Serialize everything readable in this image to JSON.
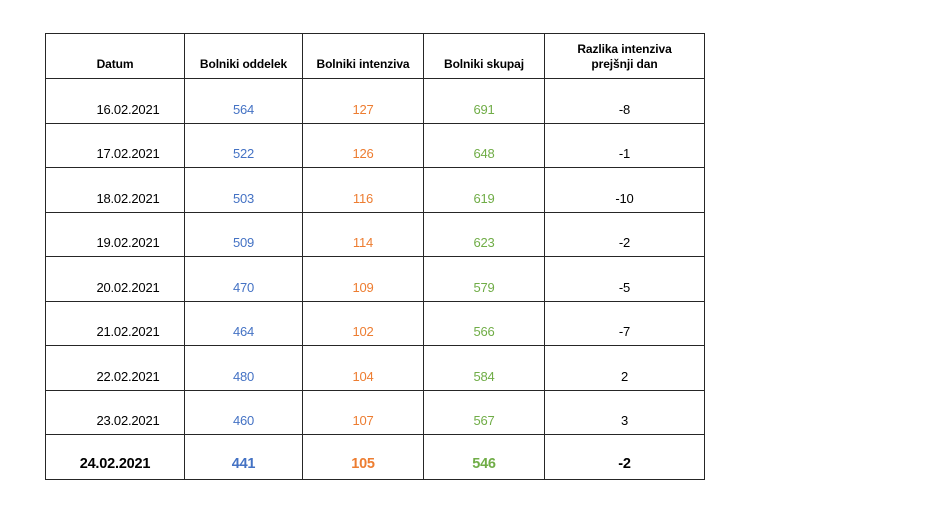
{
  "chart_data": {
    "type": "table",
    "title": "",
    "grid": true,
    "background": "#ffffff",
    "border_color": "#262626",
    "columns": [
      {
        "key": "datum",
        "label": "Datum",
        "color": "#000000"
      },
      {
        "key": "oddelek",
        "label": "Bolniki oddelek",
        "color": "#4472C4"
      },
      {
        "key": "intenziva",
        "label": "Bolniki intenziva",
        "color": "#ED7D31"
      },
      {
        "key": "skupaj",
        "label": "Bolniki skupaj",
        "color": "#70AD47"
      },
      {
        "key": "razlika",
        "label": "Razlika intenziva\nprejšnji dan",
        "color": "#000000"
      }
    ],
    "rows": [
      {
        "datum": "16.02.2021",
        "oddelek": 564,
        "intenziva": 127,
        "skupaj": 691,
        "razlika": -8,
        "emphasis": false
      },
      {
        "datum": "17.02.2021",
        "oddelek": 522,
        "intenziva": 126,
        "skupaj": 648,
        "razlika": -1,
        "emphasis": false
      },
      {
        "datum": "18.02.2021",
        "oddelek": 503,
        "intenziva": 116,
        "skupaj": 619,
        "razlika": -10,
        "emphasis": false
      },
      {
        "datum": "19.02.2021",
        "oddelek": 509,
        "intenziva": 114,
        "skupaj": 623,
        "razlika": -2,
        "emphasis": false
      },
      {
        "datum": "20.02.2021",
        "oddelek": 470,
        "intenziva": 109,
        "skupaj": 579,
        "razlika": -5,
        "emphasis": false
      },
      {
        "datum": "21.02.2021",
        "oddelek": 464,
        "intenziva": 102,
        "skupaj": 566,
        "razlika": -7,
        "emphasis": false
      },
      {
        "datum": "22.02.2021",
        "oddelek": 480,
        "intenziva": 104,
        "skupaj": 584,
        "razlika": 2,
        "emphasis": false
      },
      {
        "datum": "23.02.2021",
        "oddelek": 460,
        "intenziva": 107,
        "skupaj": 567,
        "razlika": 3,
        "emphasis": false
      },
      {
        "datum": "24.02.2021",
        "oddelek": 441,
        "intenziva": 105,
        "skupaj": 546,
        "razlika": -2,
        "emphasis": true
      }
    ]
  }
}
